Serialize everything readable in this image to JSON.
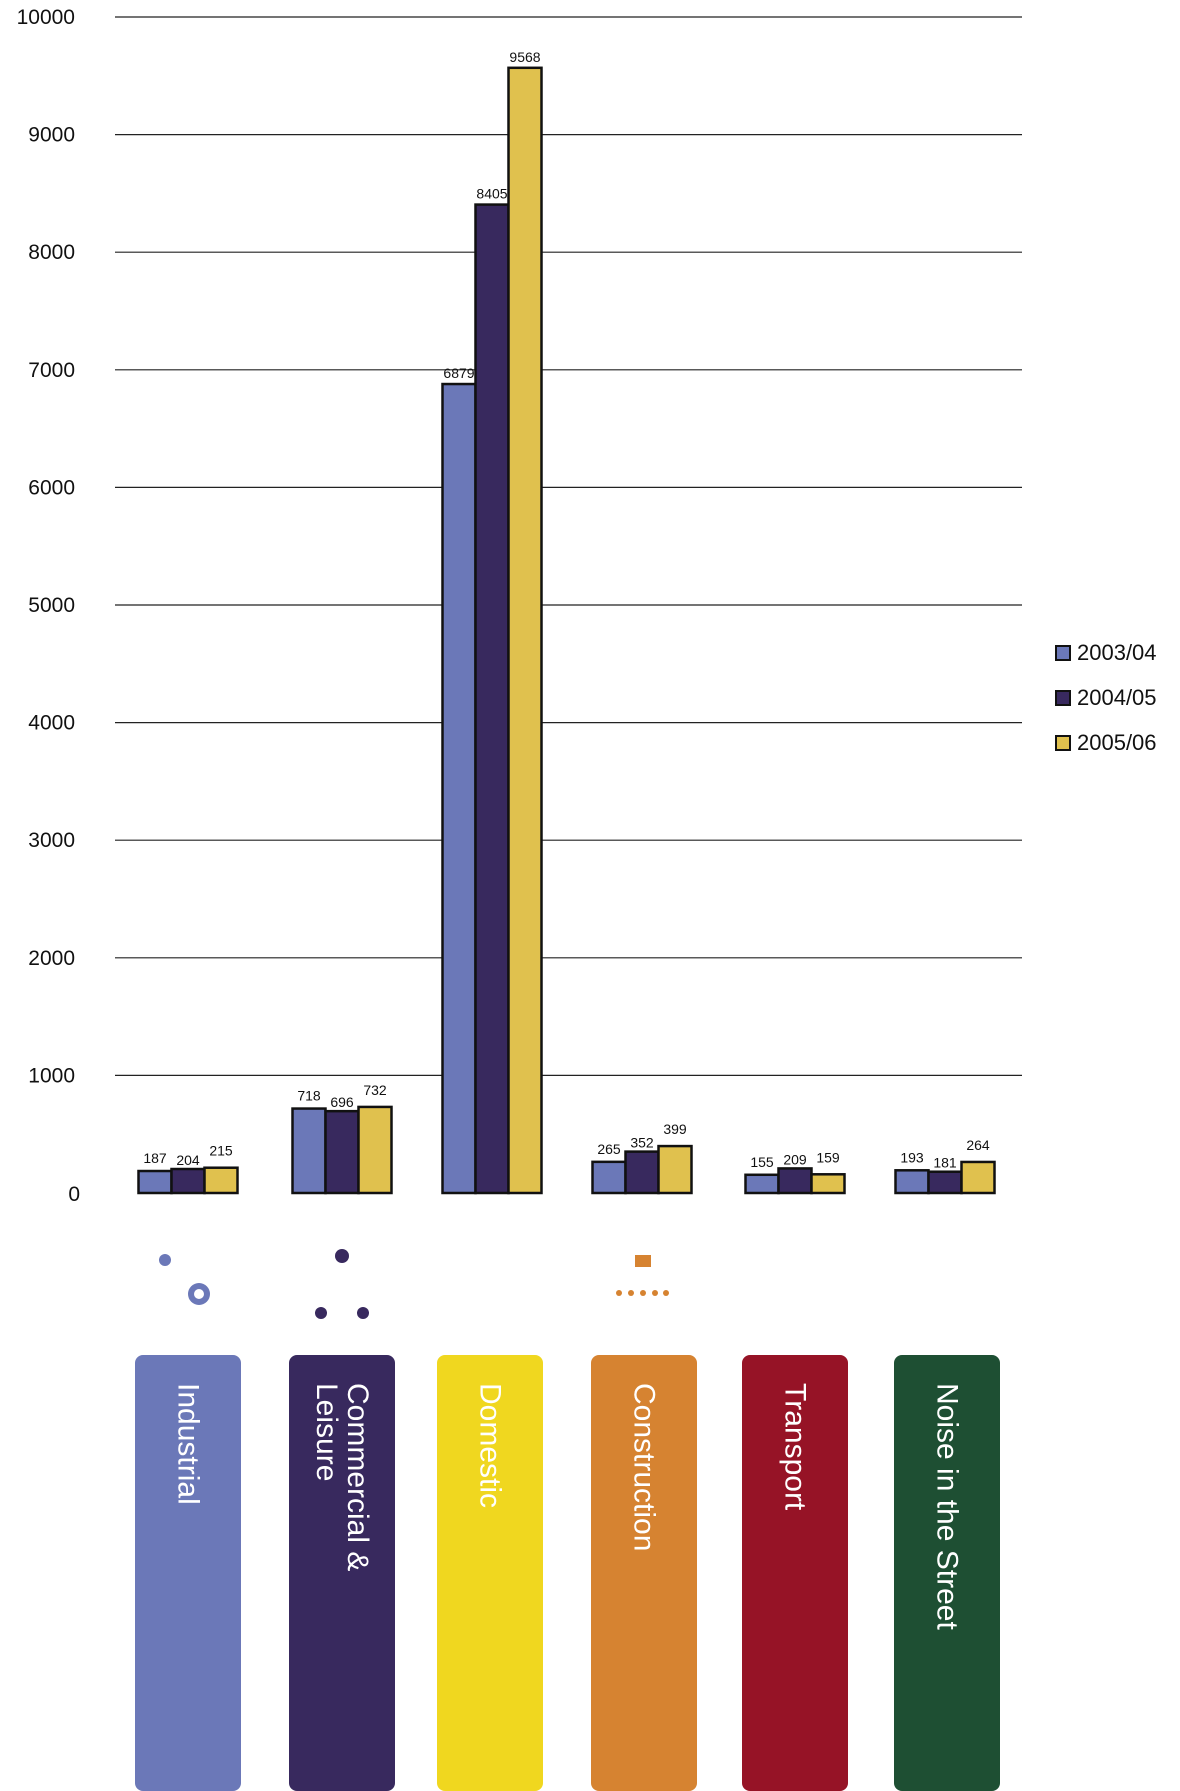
{
  "chart_data": {
    "type": "bar",
    "ylim": [
      0,
      10000
    ],
    "yticks": [
      0,
      1000,
      2000,
      3000,
      4000,
      5000,
      6000,
      7000,
      8000,
      9000,
      10000
    ],
    "grid": true,
    "legend_position": "right",
    "categories": [
      "Industrial",
      "Commercial &\nLeisure",
      "Domestic",
      "Construction",
      "Transport",
      "Noise in the Street"
    ],
    "category_colors": [
      "#6b78b8",
      "#38295e",
      "#f0d71f",
      "#d68331",
      "#961326",
      "#1e4f33"
    ],
    "category_icons": [
      "gears-icon",
      "person-icon",
      "house-icon",
      "bulldozer-icon",
      "airplane-icon",
      "speaker-icon"
    ],
    "series": [
      {
        "name": "2003/04",
        "color": "#6b78b8",
        "values": [
          187,
          718,
          6879,
          265,
          155,
          193
        ]
      },
      {
        "name": "2004/05",
        "color": "#38295e",
        "values": [
          204,
          696,
          8405,
          352,
          209,
          181
        ]
      },
      {
        "name": "2005/06",
        "color": "#e0c14e",
        "values": [
          215,
          732,
          9568,
          399,
          159,
          264
        ]
      }
    ]
  }
}
